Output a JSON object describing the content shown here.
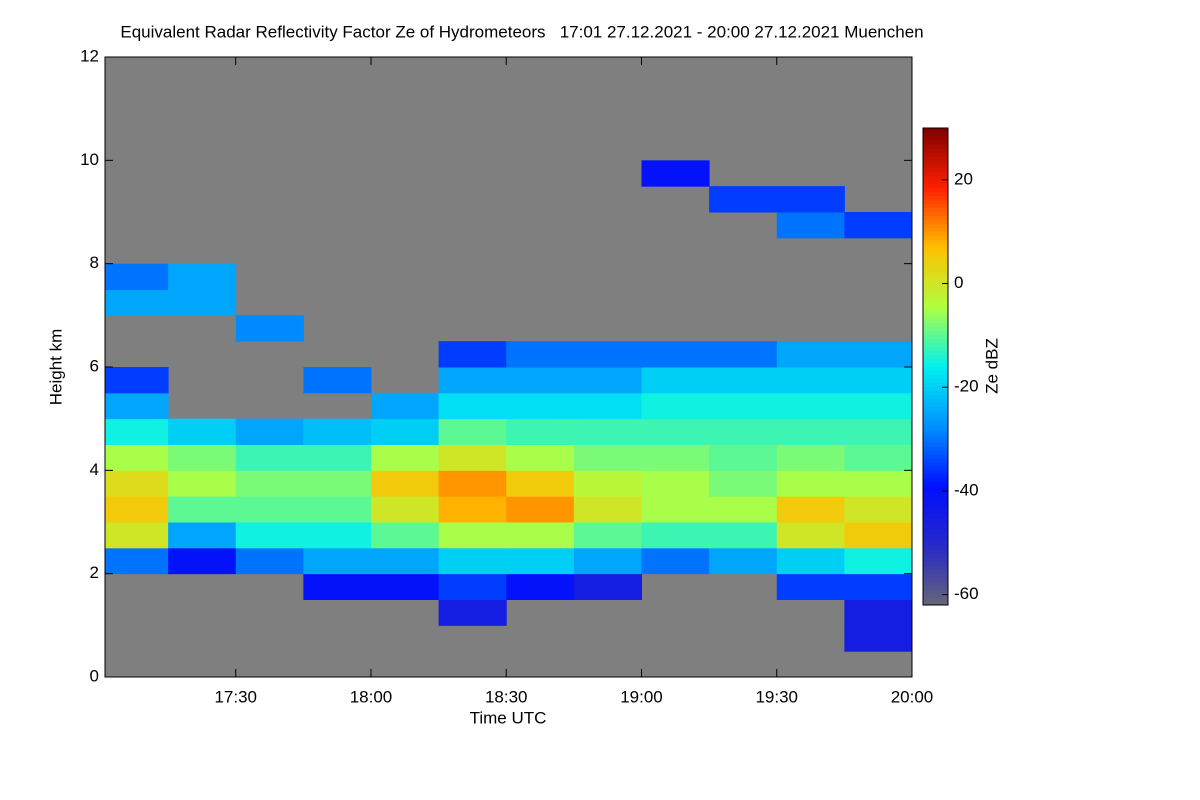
{
  "chart_data": {
    "type": "heatmap",
    "title": "Equivalent Radar Reflectivity Factor Ze of Hydrometeors   17:01 27.12.2021 - 20:00 27.12.2021 Muenchen",
    "x_label": "Time UTC",
    "y_label": "Height km",
    "colorbar_label": "Ze dBZ",
    "x": [
      17.125,
      17.375,
      17.625,
      17.875,
      18.125,
      18.375,
      18.625,
      18.875,
      19.125,
      19.375,
      19.625,
      19.875
    ],
    "y": [
      0.25,
      0.75,
      1.25,
      1.75,
      2.25,
      2.75,
      3.25,
      3.75,
      4.25,
      4.75,
      5.25,
      5.75,
      6.25,
      6.75,
      7.25,
      7.75,
      8.25,
      8.75,
      9.25,
      9.75,
      10.25,
      10.75,
      11.25,
      11.75
    ],
    "values": [
      [
        null,
        null,
        null,
        null,
        null,
        null,
        null,
        null,
        null,
        null,
        null,
        null
      ],
      [
        null,
        null,
        null,
        null,
        null,
        null,
        null,
        null,
        null,
        null,
        null,
        -45
      ],
      [
        null,
        null,
        null,
        null,
        null,
        -45,
        null,
        null,
        null,
        null,
        null,
        -45
      ],
      [
        null,
        null,
        null,
        -40,
        -40,
        -35,
        -40,
        -45,
        null,
        null,
        -35,
        -35
      ],
      [
        -30,
        -40,
        -30,
        -25,
        -25,
        -20,
        -20,
        -25,
        -30,
        -25,
        -20,
        -15
      ],
      [
        0,
        -25,
        -15,
        -15,
        -10,
        -5,
        -5,
        -10,
        -12,
        -12,
        0,
        5
      ],
      [
        5,
        -10,
        -10,
        -10,
        0,
        8,
        10,
        0,
        -5,
        -5,
        5,
        0
      ],
      [
        2,
        -5,
        -8,
        -8,
        5,
        10,
        5,
        -3,
        -5,
        -8,
        -5,
        -5
      ],
      [
        -5,
        -8,
        -12,
        -12,
        -5,
        0,
        -5,
        -8,
        -8,
        -10,
        -8,
        -10
      ],
      [
        -15,
        -20,
        -25,
        -22,
        -20,
        -10,
        -12,
        -12,
        -12,
        -12,
        -12,
        -12
      ],
      [
        -25,
        null,
        null,
        null,
        -25,
        -18,
        -18,
        -18,
        -15,
        -15,
        -15,
        -15
      ],
      [
        -35,
        null,
        null,
        -30,
        null,
        -25,
        -25,
        -25,
        -20,
        -20,
        -20,
        -20
      ],
      [
        null,
        null,
        null,
        null,
        null,
        -35,
        -30,
        -30,
        -30,
        -30,
        -25,
        -25
      ],
      [
        null,
        null,
        -28,
        null,
        null,
        null,
        null,
        null,
        null,
        null,
        null,
        null
      ],
      [
        -25,
        -25,
        null,
        null,
        null,
        null,
        null,
        null,
        null,
        null,
        null,
        null
      ],
      [
        -30,
        -25,
        null,
        null,
        null,
        null,
        null,
        null,
        null,
        null,
        null,
        null
      ],
      [
        null,
        null,
        null,
        null,
        null,
        null,
        null,
        null,
        null,
        null,
        null,
        null
      ],
      [
        null,
        null,
        null,
        null,
        null,
        null,
        null,
        null,
        null,
        null,
        -30,
        -35
      ],
      [
        null,
        null,
        null,
        null,
        null,
        null,
        null,
        null,
        null,
        -35,
        -35,
        null
      ],
      [
        null,
        null,
        null,
        null,
        null,
        null,
        null,
        null,
        -40,
        null,
        null,
        null
      ],
      [
        null,
        null,
        null,
        null,
        null,
        null,
        null,
        null,
        null,
        null,
        null,
        null
      ],
      [
        null,
        null,
        null,
        null,
        null,
        null,
        null,
        null,
        null,
        null,
        null,
        null
      ],
      [
        null,
        null,
        null,
        null,
        null,
        null,
        null,
        null,
        null,
        null,
        null,
        null
      ],
      [
        null,
        null,
        null,
        null,
        null,
        null,
        null,
        null,
        null,
        null,
        null,
        null
      ]
    ],
    "xlim": [
      17.0167,
      20.0
    ],
    "xticks": [
      {
        "value": 17.5,
        "label": "17:30"
      },
      {
        "value": 18,
        "label": "18:00"
      },
      {
        "value": 18.5,
        "label": "18:30"
      },
      {
        "value": 19,
        "label": "19:00"
      },
      {
        "value": 19.5,
        "label": "19:30"
      },
      {
        "value": 20,
        "label": "20:00"
      }
    ],
    "ylim": [
      0,
      12
    ],
    "yticks": [
      0,
      2,
      4,
      6,
      8,
      10,
      12
    ],
    "zlim": [
      -62,
      30
    ],
    "zticks": [
      -60,
      -40,
      -20,
      0,
      20
    ],
    "colorscale": [
      "#666677",
      "#2828c8",
      "#0010ff",
      "#0090ff",
      "#00f0f0",
      "#b0ff40",
      "#ffc000",
      "#ff2000",
      "#800000"
    ],
    "missing_color": "#7f7f7f"
  }
}
